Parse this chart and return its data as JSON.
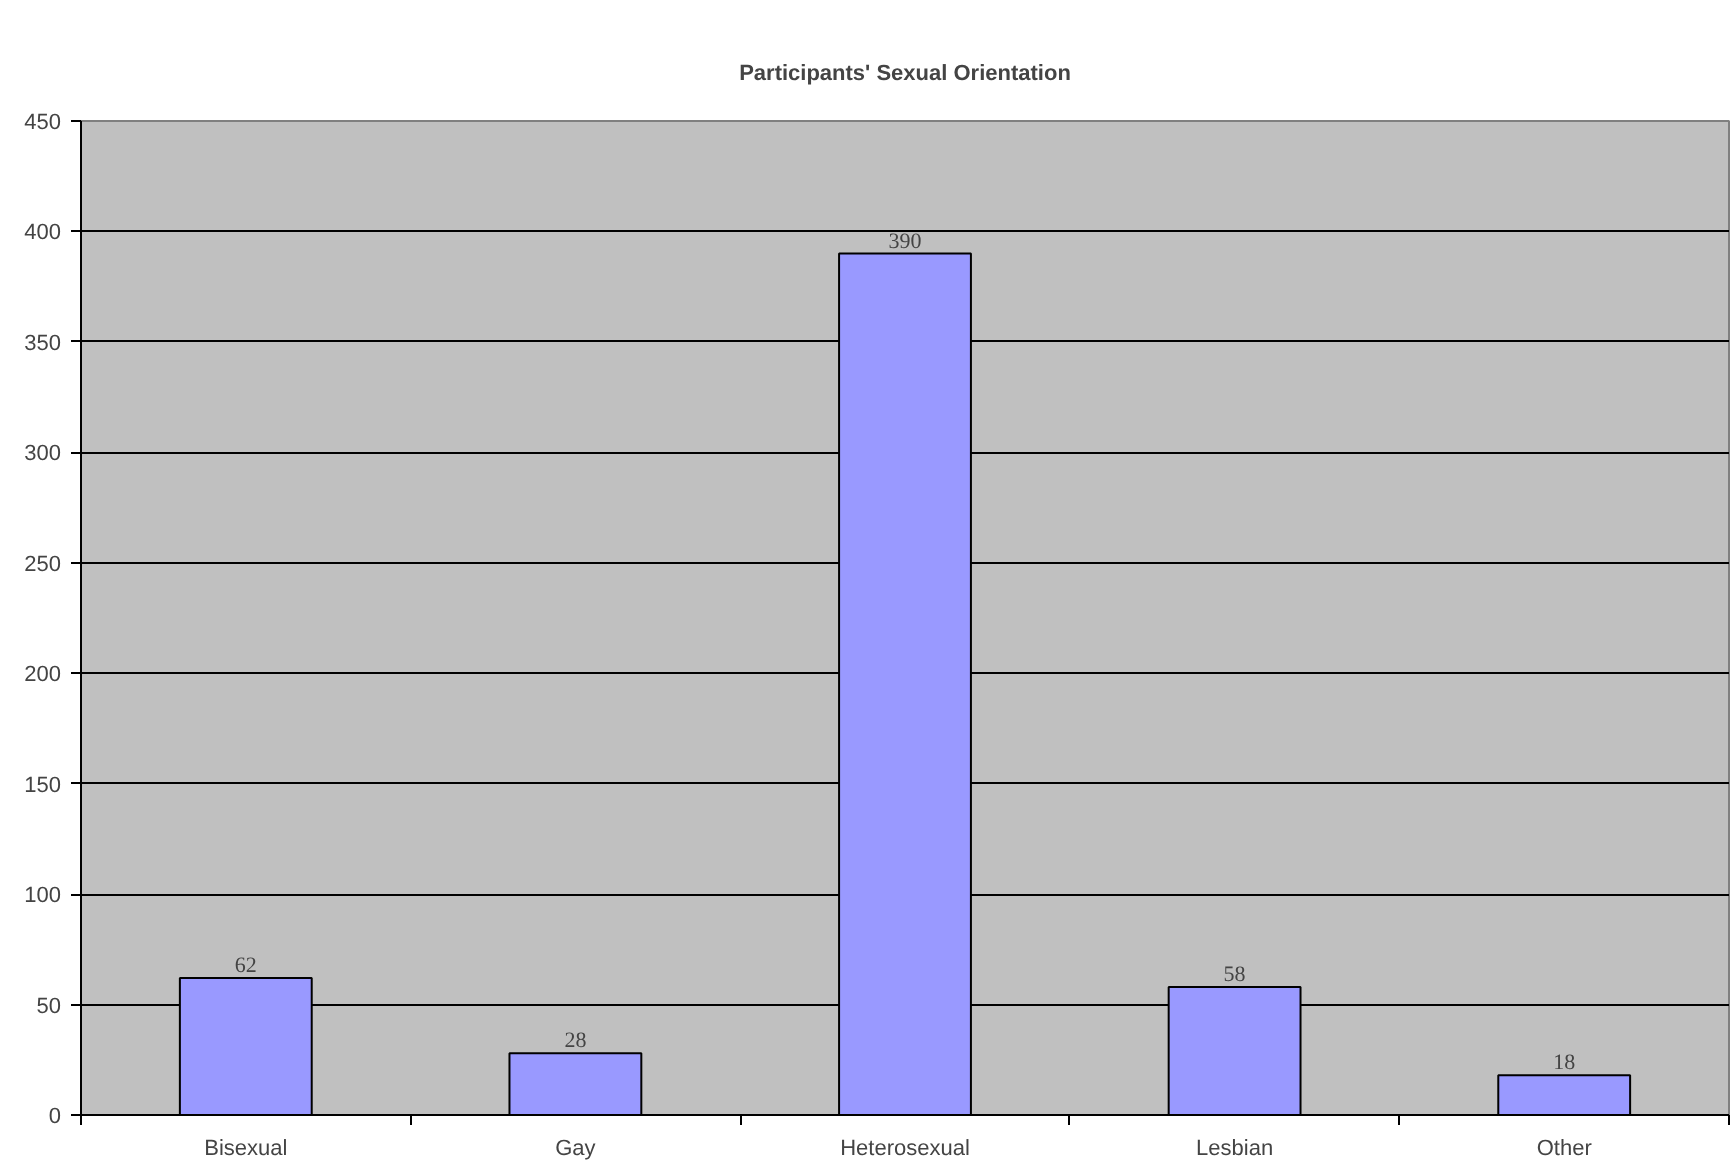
{
  "chart_data": {
    "type": "bar",
    "title": "Participants' Sexual Orientation",
    "categories": [
      "Bisexual",
      "Gay",
      "Heterosexual",
      "Lesbian",
      "Other"
    ],
    "values": [
      62,
      28,
      390,
      58,
      18
    ],
    "color": "#9999ff",
    "ylim": [
      0,
      450
    ],
    "yticks": [
      0,
      50,
      100,
      150,
      200,
      250,
      300,
      350,
      400,
      450
    ],
    "grid": "y",
    "data_labels": true
  }
}
